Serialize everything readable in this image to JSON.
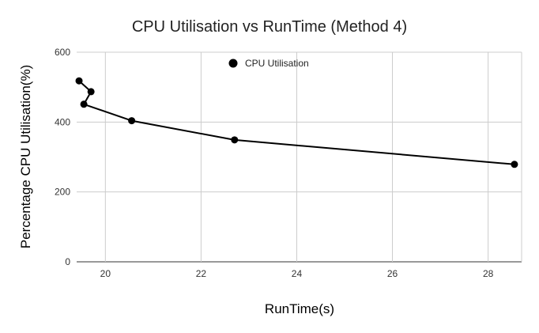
{
  "chart_data": {
    "type": "scatter",
    "title": "CPU Utilisation vs RunTime (Method 4)",
    "xlabel": "RunTime(s)",
    "ylabel": "Percentage CPU Utilisation(%)",
    "xlim": [
      19.4,
      28.7
    ],
    "ylim": [
      0,
      600
    ],
    "xticks": [
      20,
      22,
      24,
      26,
      28
    ],
    "yticks": [
      0,
      200,
      400,
      600
    ],
    "grid": true,
    "legend_position": "top",
    "series": [
      {
        "name": "CPU Utilisation",
        "color": "#000000",
        "points": [
          {
            "x": 19.45,
            "y": 518
          },
          {
            "x": 19.7,
            "y": 487
          },
          {
            "x": 19.55,
            "y": 451
          },
          {
            "x": 20.55,
            "y": 404
          },
          {
            "x": 22.7,
            "y": 349
          },
          {
            "x": 28.55,
            "y": 279
          }
        ]
      }
    ]
  }
}
